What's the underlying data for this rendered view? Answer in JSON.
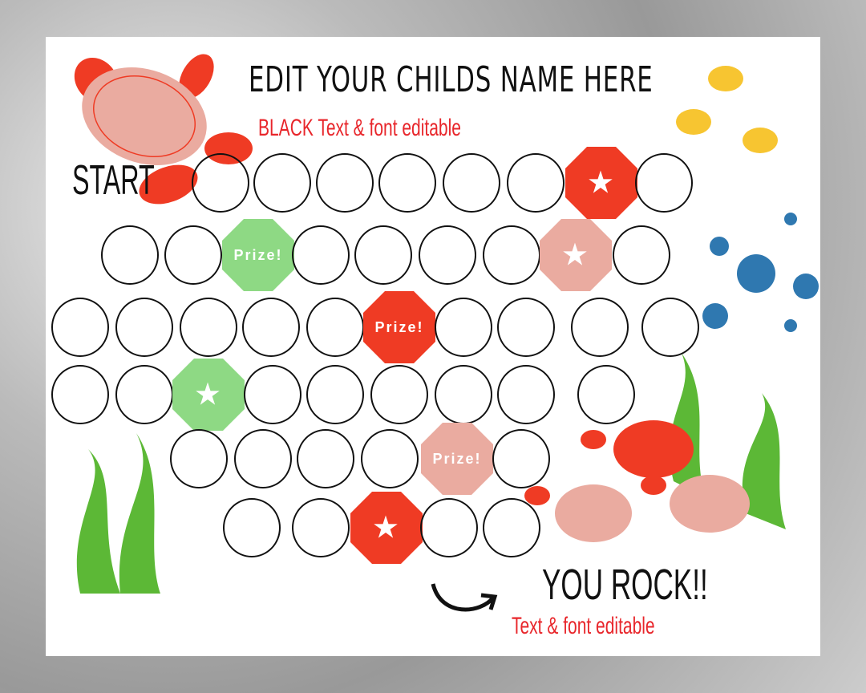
{
  "header": {
    "title": "Edit your childs name here",
    "subtitle": "BLACK Text & font editable"
  },
  "start_label": "START",
  "finish": {
    "label": "YOU ROCK!!",
    "subtitle": "Text & font editable"
  },
  "colors": {
    "red": "#ef3b24",
    "pink": "#eaaba0",
    "green": "#8ed984",
    "text_red": "#e8262b"
  },
  "board": {
    "rows": [
      [
        "circle",
        "circle",
        "circle",
        "circle",
        "circle",
        "circle",
        {
          "shape": "octagon",
          "color": "red",
          "icon": "star"
        },
        "circle"
      ],
      [
        "circle",
        "circle",
        {
          "shape": "octagon",
          "color": "green",
          "label": "Prize!"
        },
        "circle",
        "circle",
        "circle",
        "circle",
        {
          "shape": "octagon",
          "color": "pink",
          "icon": "star"
        },
        "circle"
      ],
      [
        "circle",
        "circle",
        "circle",
        "circle",
        "circle",
        {
          "shape": "octagon",
          "color": "red",
          "label": "Prize!"
        },
        "circle",
        "circle",
        "circle",
        "circle"
      ],
      [
        "circle",
        "circle",
        {
          "shape": "octagon",
          "color": "green",
          "icon": "star"
        },
        "circle",
        "circle",
        "circle",
        "circle",
        "circle",
        "circle"
      ],
      [
        "circle",
        "circle",
        "circle",
        "circle",
        {
          "shape": "octagon",
          "color": "pink",
          "label": "Prize!"
        },
        "circle"
      ],
      [
        "circle",
        "circle",
        {
          "shape": "octagon",
          "color": "red",
          "icon": "star"
        },
        "circle",
        "circle"
      ]
    ]
  }
}
